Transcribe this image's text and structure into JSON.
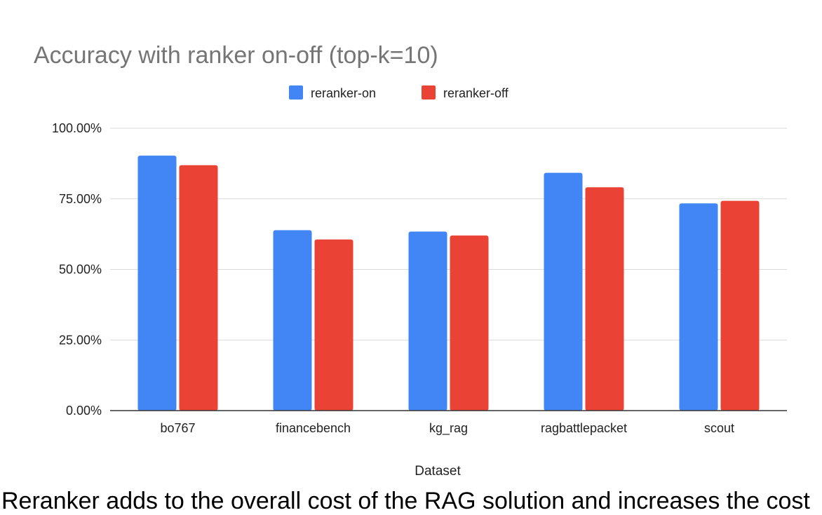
{
  "chart_data": {
    "type": "bar",
    "title": "Accuracy with ranker on-off (top-k=10)",
    "xlabel": "Dataset",
    "ylabel": "",
    "categories": [
      "bo767",
      "financebench",
      "kg_rag",
      "ragbattlepacket",
      "scout"
    ],
    "series": [
      {
        "name": "reranker-on",
        "color": "#4285f4",
        "values": [
          0.903,
          0.639,
          0.634,
          0.842,
          0.734
        ]
      },
      {
        "name": "reranker-off",
        "color": "#ea4335",
        "values": [
          0.869,
          0.606,
          0.62,
          0.791,
          0.743
        ]
      }
    ],
    "ylim": [
      0,
      1
    ],
    "yticks": [
      {
        "value": 0,
        "label": "0.00%"
      },
      {
        "value": 0.25,
        "label": "25.00%"
      },
      {
        "value": 0.5,
        "label": "50.00%"
      },
      {
        "value": 0.75,
        "label": "75.00%"
      },
      {
        "value": 1,
        "label": "100.00%"
      }
    ],
    "grid": true,
    "legend_position": "top-center"
  },
  "caption": {
    "text": "Reranker adds to the overall cost of the RAG solution and increases the cost"
  }
}
